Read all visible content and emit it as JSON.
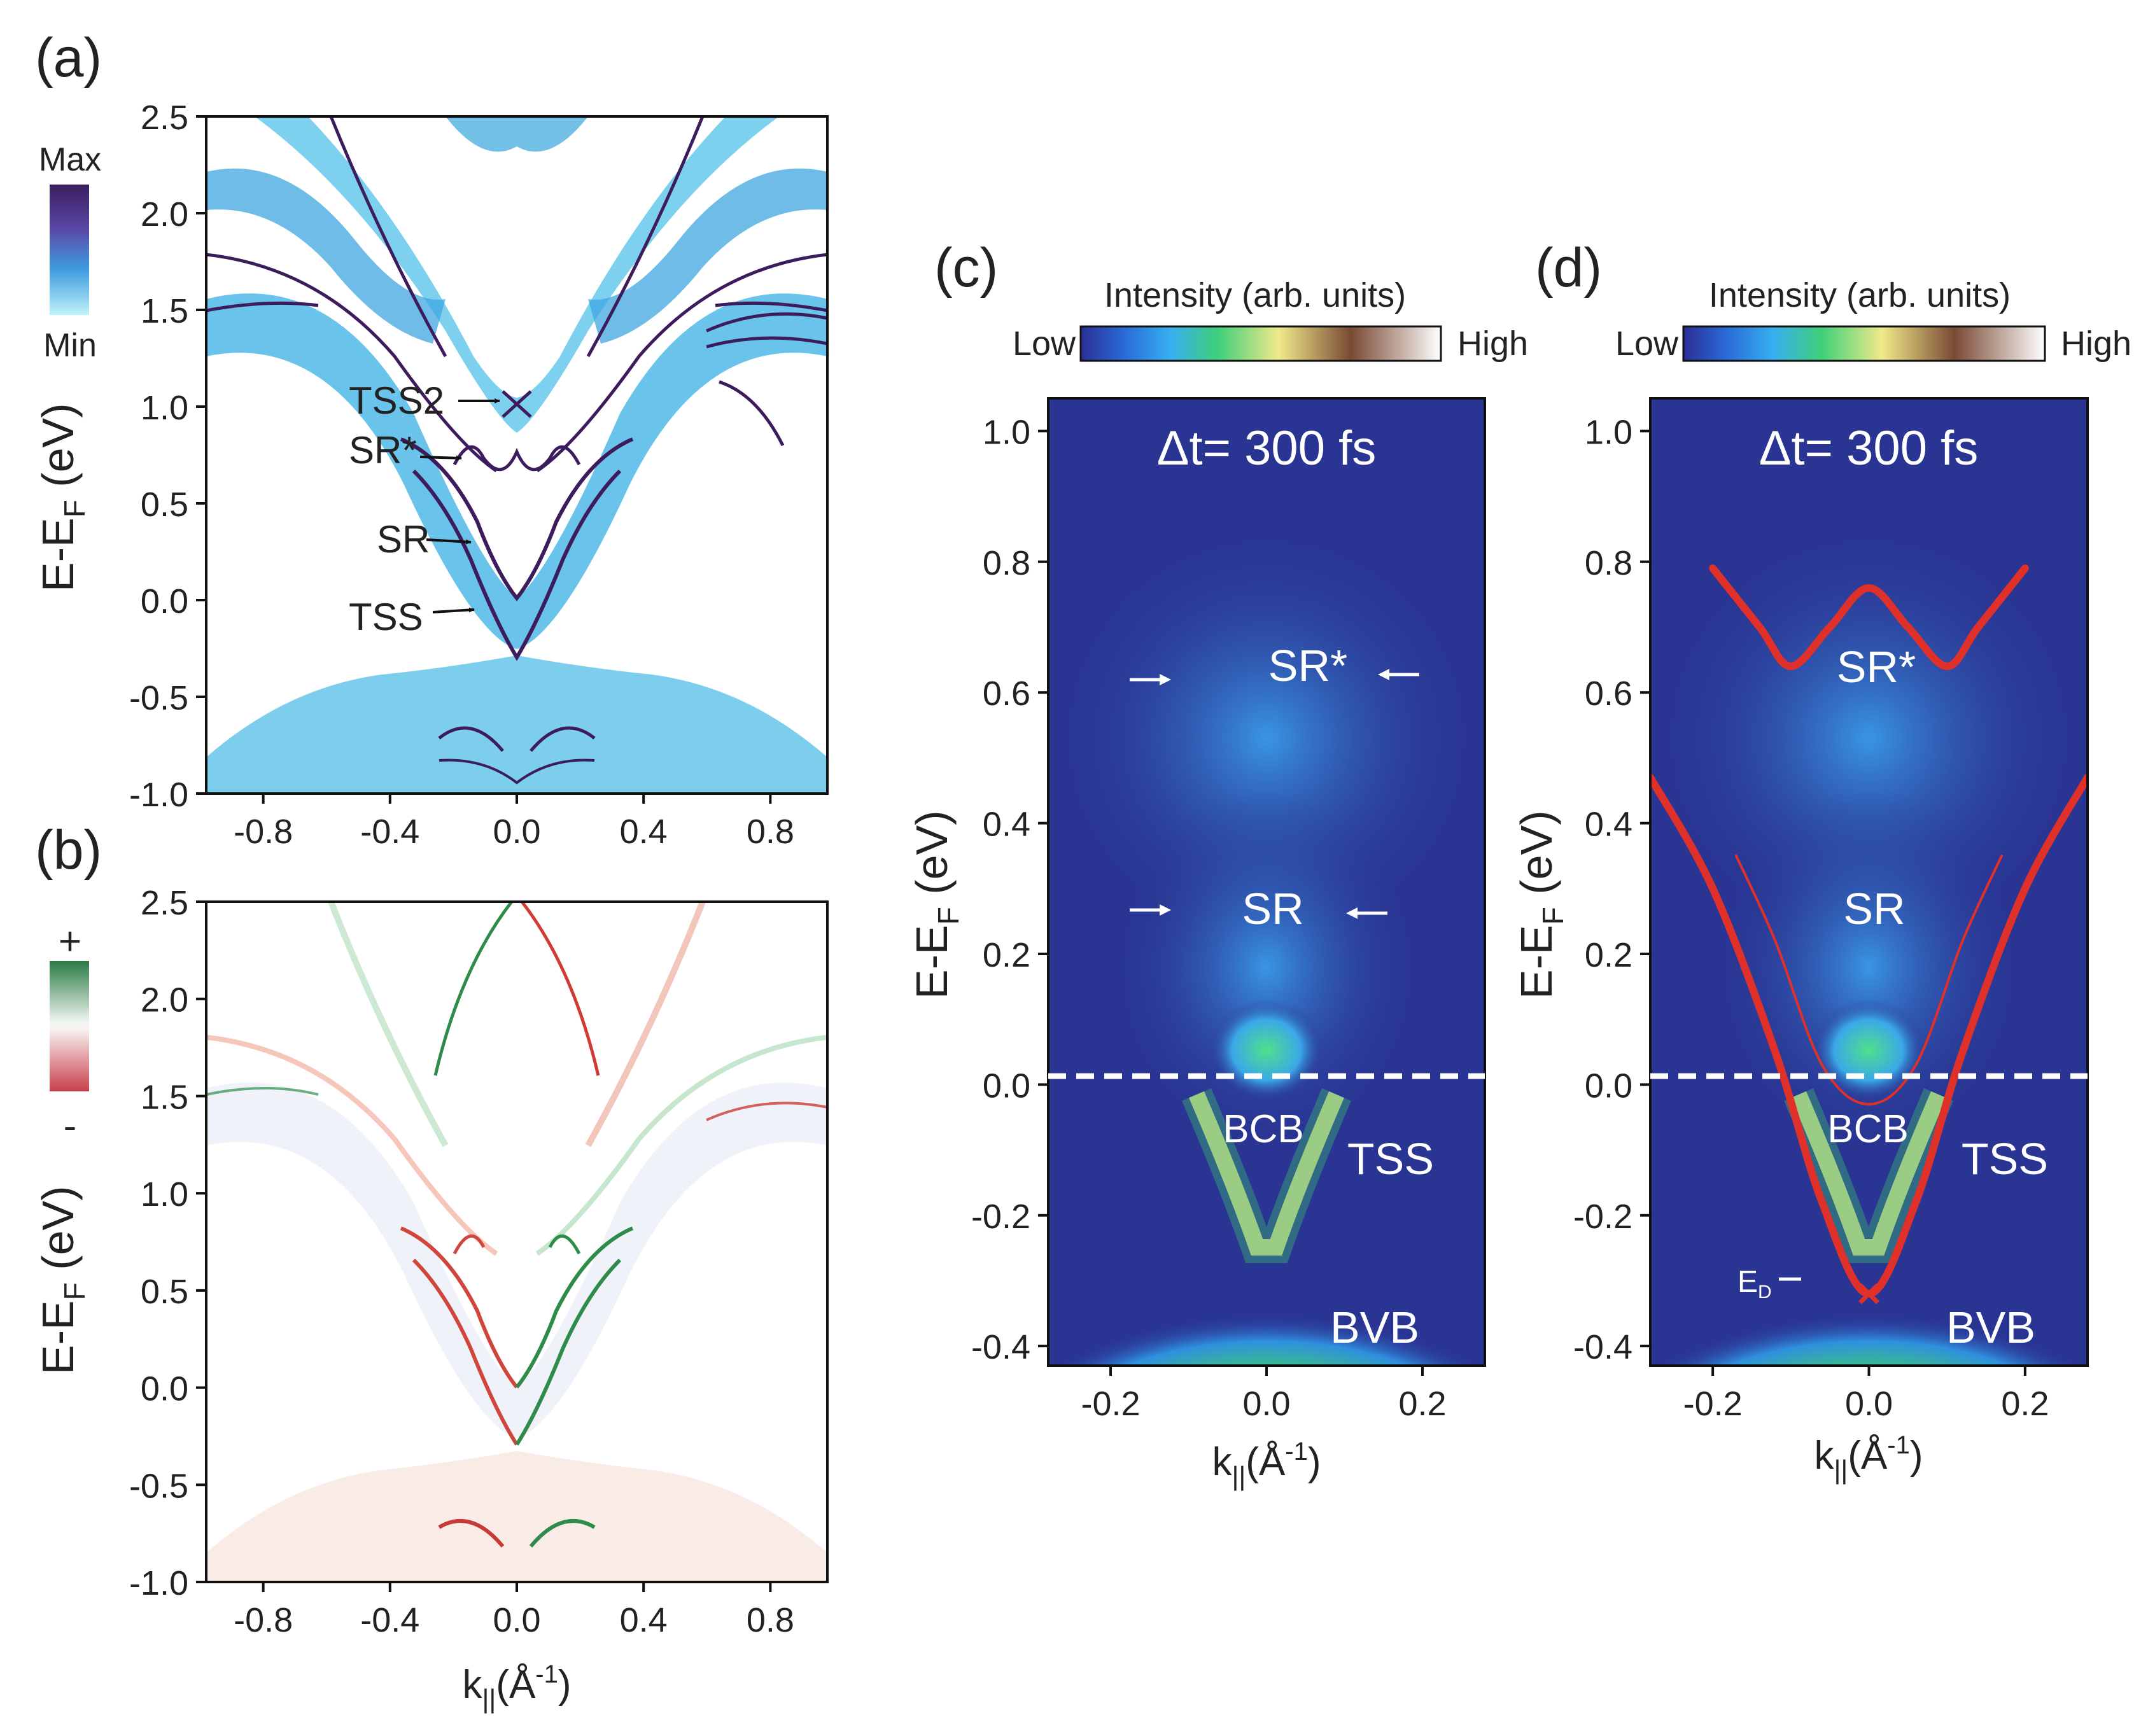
{
  "panels": {
    "a": {
      "label": "(a)",
      "ylabel": "E-E",
      "ylabel_sub": "F",
      "ylabel_unit": " (eV)",
      "yticks": [
        "2.5",
        "2.0",
        "1.5",
        "1.0",
        "0.5",
        "0.0",
        "-0.5",
        "-1.0"
      ],
      "xticks": [
        "-0.8",
        "-0.4",
        "0.0",
        "0.4",
        "0.8"
      ],
      "colorbar": {
        "top": "Max",
        "bottom": "Min"
      },
      "annotations": [
        "TSS2",
        "SR*",
        "SR",
        "TSS"
      ]
    },
    "b": {
      "label": "(b)",
      "ylabel": "E-E",
      "ylabel_sub": "F",
      "ylabel_unit": " (eV)",
      "yticks": [
        "2.5",
        "2.0",
        "1.5",
        "1.0",
        "0.5",
        "0.0",
        "-0.5",
        "-1.0"
      ],
      "xticks": [
        "-0.8",
        "-0.4",
        "0.0",
        "0.4",
        "0.8"
      ],
      "colorbar": {
        "top": "+",
        "bottom": "-"
      },
      "xlabel": "k",
      "xlabel_sub": "||",
      "xlabel_unit": "(Å",
      "xlabel_sup": "-1",
      "xlabel_close": ")"
    },
    "c": {
      "label": "(c)",
      "colorbar_title": "Intensity (arb. units)",
      "colorbar_low": "Low",
      "colorbar_high": "High",
      "delay": "Δt= 300 fs",
      "ylabel": "E-E",
      "ylabel_sub": "F",
      "ylabel_unit": " (eV)",
      "yticks": [
        "1.0",
        "0.8",
        "0.6",
        "0.4",
        "0.2",
        "0.0",
        "-0.2",
        "-0.4"
      ],
      "xticks": [
        "-0.2",
        "0.0",
        "0.2"
      ],
      "xlabel": "k",
      "xlabel_sub": "||",
      "xlabel_unit": "(Å",
      "xlabel_sup": "-1",
      "xlabel_close": ")",
      "annotations": [
        "SR*",
        "SR",
        "BCB",
        "TSS",
        "BVB"
      ]
    },
    "d": {
      "label": "(d)",
      "colorbar_title": "Intensity (arb. units)",
      "colorbar_low": "Low",
      "colorbar_high": "High",
      "delay": "Δt= 300 fs",
      "ylabel": "E-E",
      "ylabel_sub": "F",
      "ylabel_unit": " (eV)",
      "yticks": [
        "1.0",
        "0.8",
        "0.6",
        "0.4",
        "0.2",
        "0.0",
        "-0.2",
        "-0.4"
      ],
      "xticks": [
        "-0.2",
        "0.0",
        "0.2"
      ],
      "xlabel": "k",
      "xlabel_sub": "||",
      "xlabel_unit": "(Å",
      "xlabel_sup": "-1",
      "xlabel_close": ")",
      "annotations": [
        "SR*",
        "SR",
        "BCB",
        "TSS",
        "BVB"
      ],
      "dirac_label": "E",
      "dirac_sub": "D"
    }
  },
  "colors": {
    "band_dark": "#3d1c5e",
    "band_fill": "#4fb0e0",
    "spin_plus": "#2e8b4a",
    "spin_minus": "#d0453c",
    "arpes_bg": "#2a3593",
    "fit_red": "#e0302a"
  },
  "chart_data": [
    {
      "panel": "a",
      "type": "heatmap",
      "title": "",
      "xlabel": "k|| (Å^-1)",
      "ylabel": "E-EF (eV)",
      "xlim": [
        -0.98,
        0.98
      ],
      "ylim": [
        -1.0,
        2.5
      ],
      "series": [
        {
          "name": "TSS",
          "x": [
            -0.3,
            -0.2,
            -0.1,
            0.0,
            0.1,
            0.2,
            0.3
          ],
          "y": [
            0.35,
            0.2,
            -0.05,
            -0.3,
            -0.05,
            0.2,
            0.35
          ]
        },
        {
          "name": "SR",
          "x": [
            -0.4,
            -0.25,
            -0.1,
            0.0,
            0.1,
            0.25,
            0.4
          ],
          "y": [
            0.6,
            0.45,
            0.12,
            0.0,
            0.12,
            0.45,
            0.6
          ]
        },
        {
          "name": "SR*",
          "x": [
            -0.22,
            -0.15,
            -0.08,
            0.0,
            0.08,
            0.15,
            0.22
          ],
          "y": [
            0.8,
            0.65,
            0.85,
            0.78,
            0.85,
            0.65,
            0.8
          ]
        },
        {
          "name": "TSS2",
          "x": [
            -0.05,
            0.0,
            0.05
          ],
          "y": [
            1.05,
            1.0,
            1.05
          ]
        }
      ]
    },
    {
      "panel": "c",
      "type": "heatmap",
      "title": "Δt= 300 fs",
      "xlabel": "k|| (Å^-1)",
      "ylabel": "E-EF (eV)",
      "xlim": [
        -0.28,
        0.28
      ],
      "ylim": [
        -0.43,
        1.05
      ],
      "fermi_level": 0.0,
      "arrows": [
        {
          "label": "SR*",
          "y": 0.61,
          "x_left": -0.13,
          "x_right": 0.13
        },
        {
          "label": "SR",
          "y": 0.25,
          "x_left": -0.13,
          "x_right": 0.13
        }
      ]
    },
    {
      "panel": "d",
      "type": "line",
      "title": "Δt= 300 fs",
      "xlabel": "k|| (Å^-1)",
      "ylabel": "E-EF (eV)",
      "xlim": [
        -0.28,
        0.28
      ],
      "ylim": [
        -0.43,
        1.05
      ],
      "fermi_level": 0.0,
      "dirac_point": {
        "x": 0.0,
        "y": -0.32
      },
      "series": [
        {
          "name": "TSS fit",
          "x": [
            -0.28,
            -0.2,
            -0.12,
            -0.06,
            0.0,
            0.06,
            0.12,
            0.2,
            0.28
          ],
          "y": [
            0.47,
            0.3,
            0.05,
            -0.18,
            -0.32,
            -0.18,
            0.05,
            0.3,
            0.47
          ]
        },
        {
          "name": "SR fit",
          "x": [
            -0.17,
            -0.12,
            -0.06,
            0.0,
            0.06,
            0.12,
            0.17
          ],
          "y": [
            0.35,
            0.22,
            0.03,
            -0.03,
            0.03,
            0.22,
            0.35
          ]
        },
        {
          "name": "SR* fit",
          "x": [
            -0.2,
            -0.14,
            -0.1,
            -0.05,
            0.0,
            0.05,
            0.1,
            0.14,
            0.2
          ],
          "y": [
            0.79,
            0.7,
            0.64,
            0.7,
            0.76,
            0.7,
            0.64,
            0.7,
            0.79
          ]
        }
      ]
    }
  ]
}
